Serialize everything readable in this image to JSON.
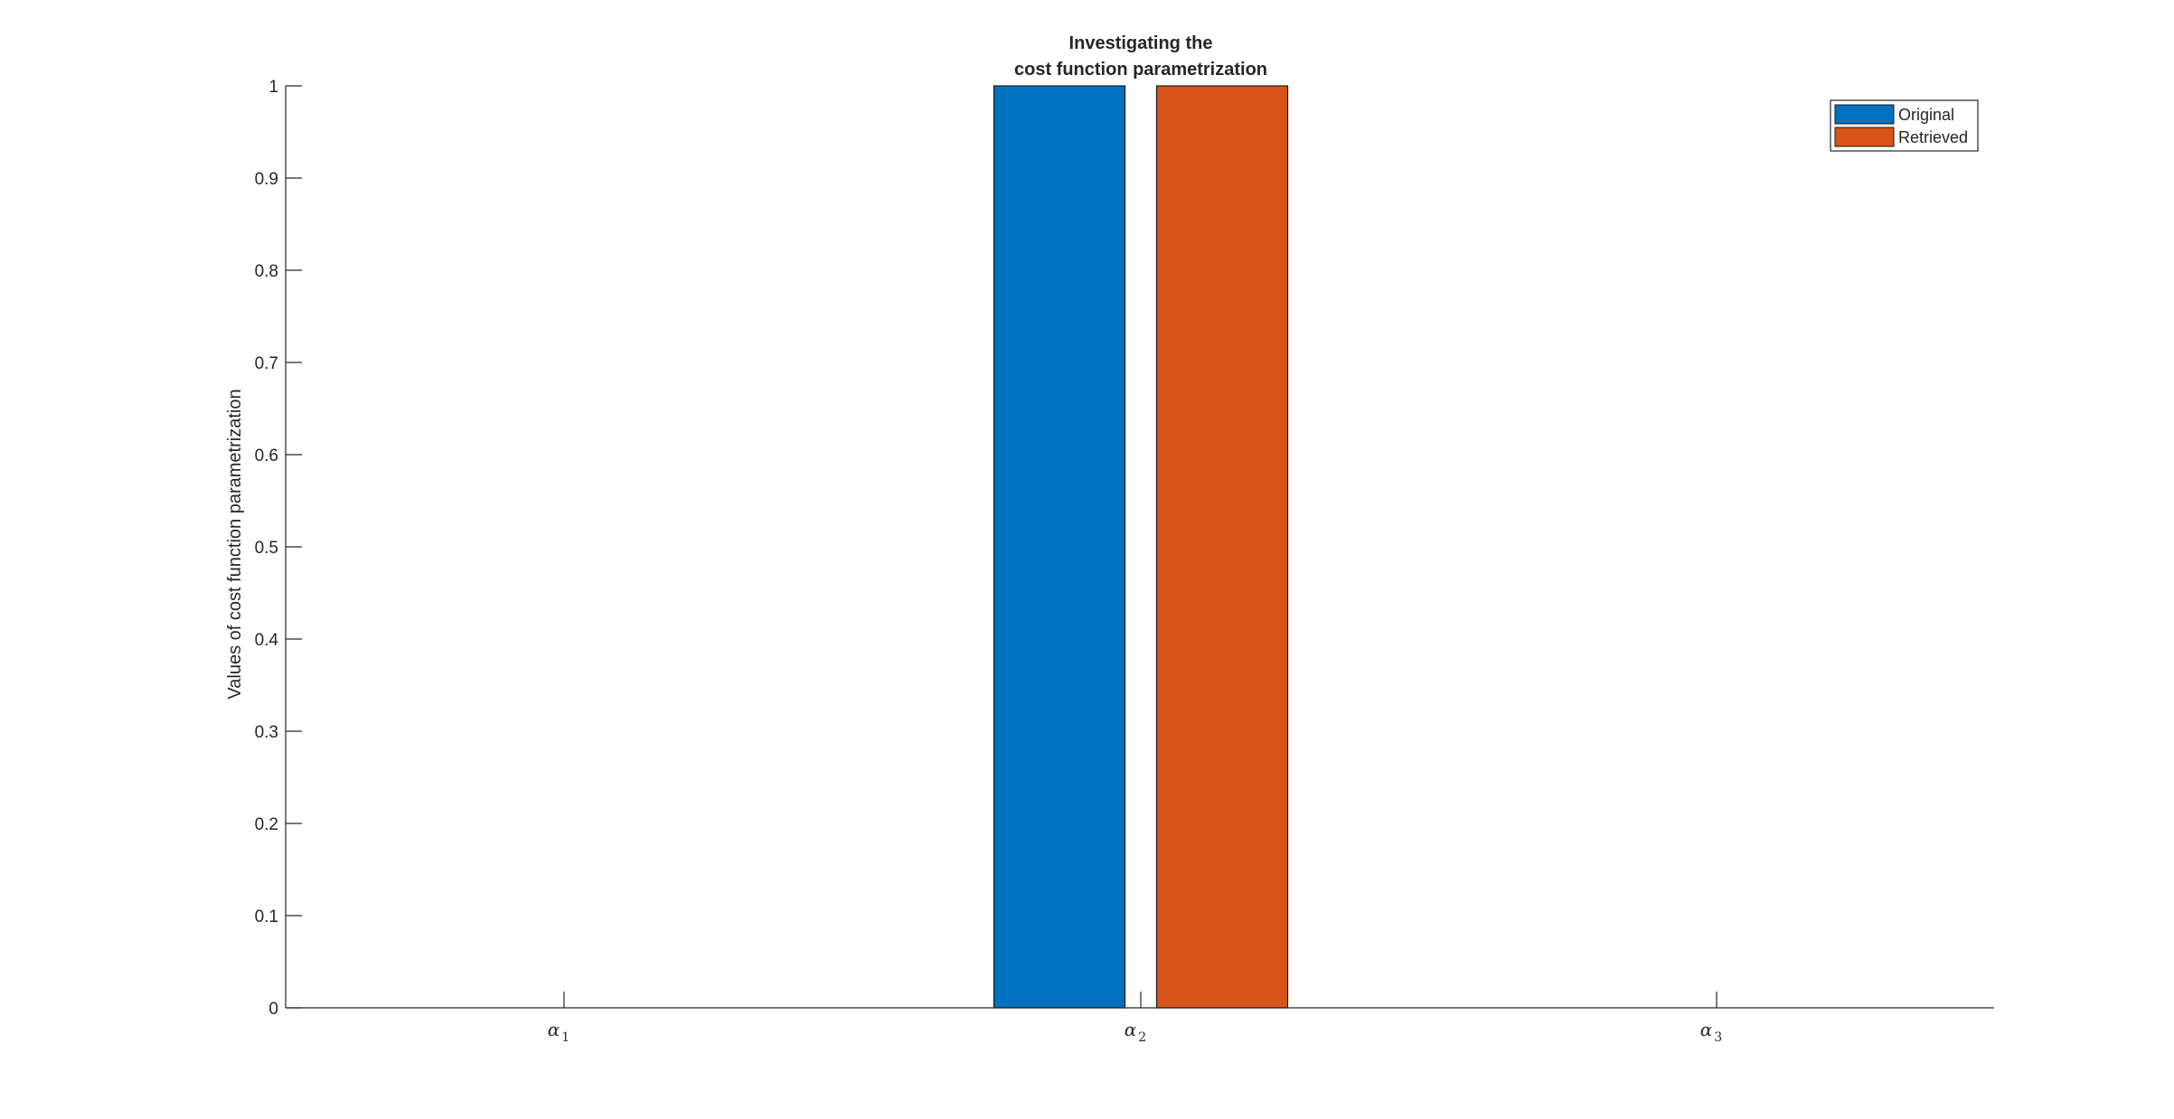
{
  "chart_data": {
    "type": "bar",
    "title_lines": [
      "Investigating the",
      "cost function parametrization"
    ],
    "ylabel": "Values of cost function parametrization",
    "xlabel": "",
    "categories": [
      {
        "base": "α",
        "sub": "1"
      },
      {
        "base": "α",
        "sub": "2"
      },
      {
        "base": "α",
        "sub": "3"
      }
    ],
    "series": [
      {
        "name": "Original",
        "values": [
          0,
          1,
          0
        ],
        "color": "#0072BD"
      },
      {
        "name": "Retrieved",
        "values": [
          0,
          1,
          0
        ],
        "color": "#D95319"
      }
    ],
    "ylim": [
      0,
      1
    ],
    "yticks": [
      0,
      0.1,
      0.2,
      0.3,
      0.4,
      0.5,
      0.6,
      0.7,
      0.8,
      0.9,
      1
    ],
    "ytick_labels": [
      "0",
      "0.1",
      "0.2",
      "0.3",
      "0.4",
      "0.5",
      "0.6",
      "0.7",
      "0.8",
      "0.9",
      "1"
    ],
    "grid": false,
    "legend_position": "top-right"
  }
}
